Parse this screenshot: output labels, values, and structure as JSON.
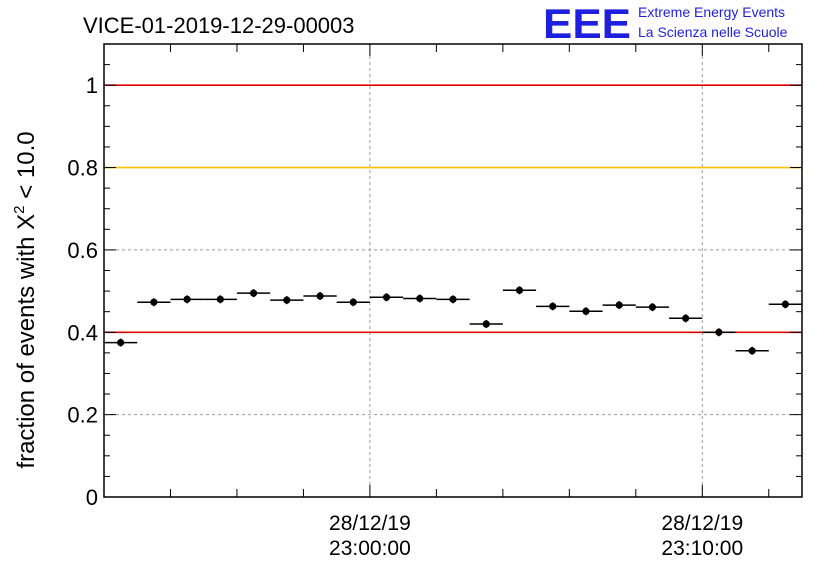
{
  "chart_data": {
    "type": "scatter",
    "title": "VICE-01-2019-12-29-00003",
    "ylabel_prefix": "fraction of events with ",
    "ylabel_symbol": "X",
    "ylabel_exponent": "2",
    "ylabel_suffix": " < 10.0",
    "xlabel": "",
    "ylim": [
      0,
      1.1
    ],
    "yticks": [
      {
        "value": 0,
        "label": "0"
      },
      {
        "value": 0.2,
        "label": "0.2"
      },
      {
        "value": 0.4,
        "label": "0.4"
      },
      {
        "value": 0.6,
        "label": "0.6"
      },
      {
        "value": 0.8,
        "label": "0.8"
      },
      {
        "value": 1,
        "label": "1"
      }
    ],
    "x_minutes_range": [
      -8,
      13
    ],
    "xticks": [
      {
        "minute": 0,
        "date": "28/12/19",
        "time": "23:00:00"
      },
      {
        "minute": 10,
        "date": "28/12/19",
        "time": "23:10:00"
      }
    ],
    "grid": true,
    "reference_lines": [
      {
        "value": 1.0,
        "color": "#e00000"
      },
      {
        "value": 0.8,
        "color": "#ffc000"
      },
      {
        "value": 0.4,
        "color": "#e00000"
      }
    ],
    "points": [
      {
        "x": -7.5,
        "y": 0.375
      },
      {
        "x": -6.5,
        "y": 0.473
      },
      {
        "x": -5.5,
        "y": 0.48
      },
      {
        "x": -4.5,
        "y": 0.48
      },
      {
        "x": -3.5,
        "y": 0.495
      },
      {
        "x": -2.5,
        "y": 0.478
      },
      {
        "x": -1.5,
        "y": 0.488
      },
      {
        "x": -0.5,
        "y": 0.473
      },
      {
        "x": 0.5,
        "y": 0.485
      },
      {
        "x": 1.5,
        "y": 0.482
      },
      {
        "x": 2.5,
        "y": 0.48
      },
      {
        "x": 3.5,
        "y": 0.42
      },
      {
        "x": 4.5,
        "y": 0.502
      },
      {
        "x": 5.5,
        "y": 0.463
      },
      {
        "x": 6.5,
        "y": 0.451
      },
      {
        "x": 7.5,
        "y": 0.466
      },
      {
        "x": 8.5,
        "y": 0.461
      },
      {
        "x": 9.5,
        "y": 0.434
      },
      {
        "x": 10.5,
        "y": 0.4
      },
      {
        "x": 11.5,
        "y": 0.355
      },
      {
        "x": 12.5,
        "y": 0.468
      }
    ],
    "bin_halfwidth_minutes": 0.5
  },
  "logo": {
    "letters": "EEE",
    "line1": "Extreme Energy Events",
    "line2": "La Scienza nelle Scuole"
  }
}
